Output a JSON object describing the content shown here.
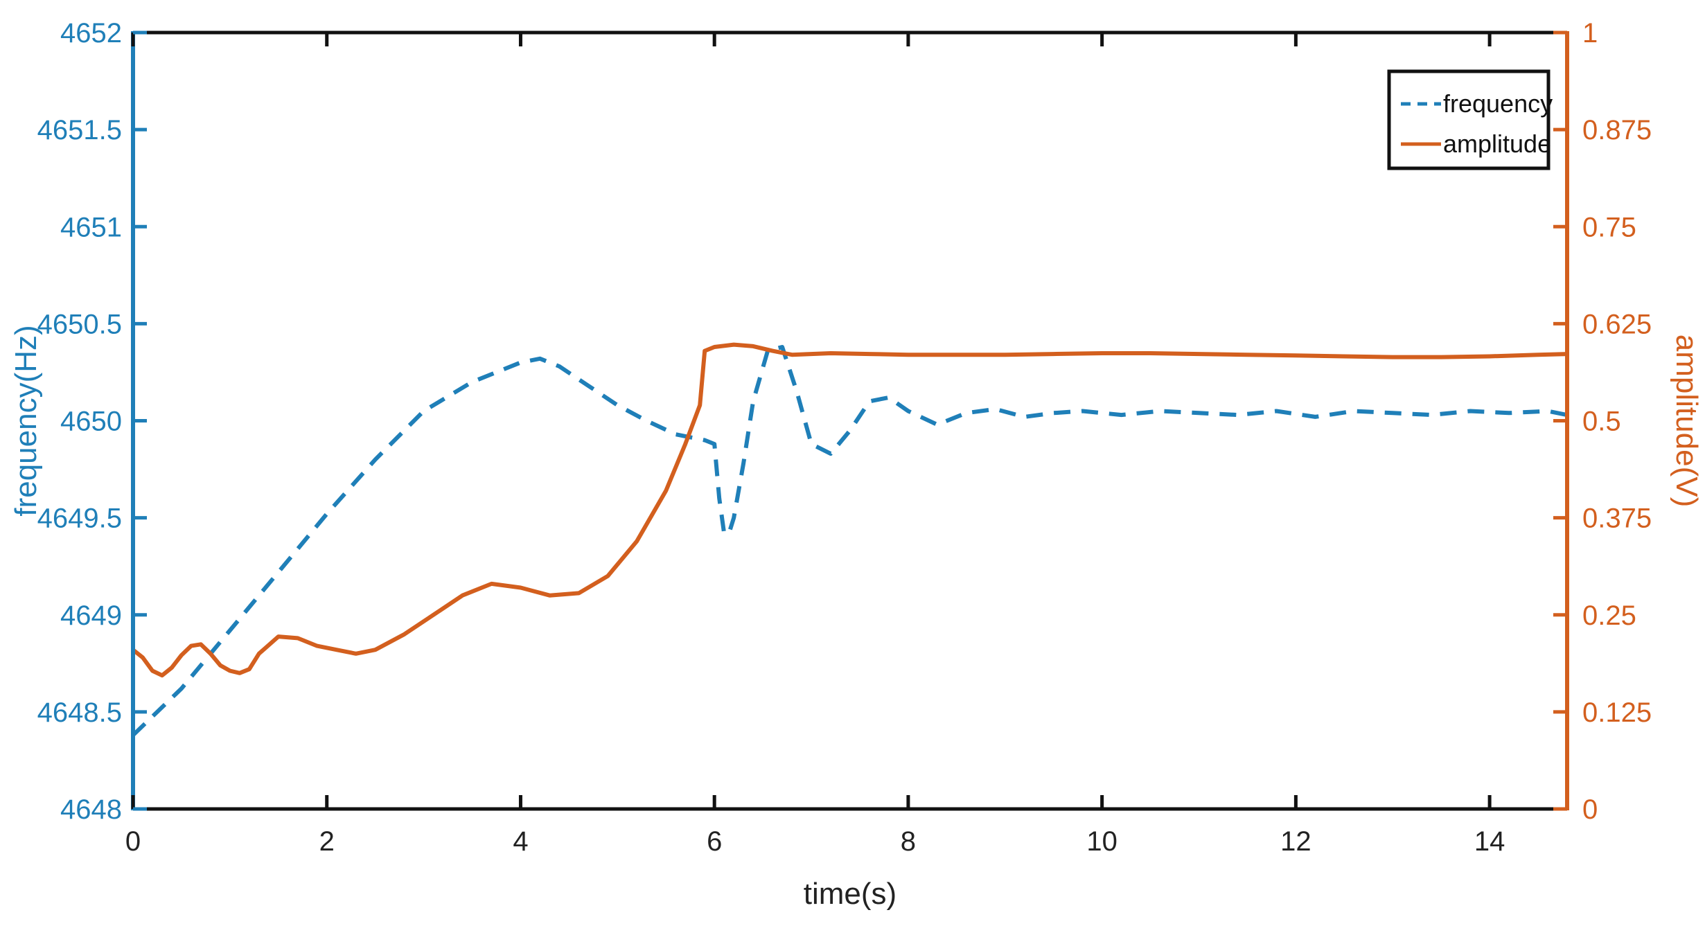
{
  "chart_data": {
    "type": "line",
    "xlabel": "time(s)",
    "ylabel_left": "frequency(Hz)",
    "ylabel_right": "amplitude(V)",
    "xlim": [
      0,
      14.8
    ],
    "ylim_left": [
      4648,
      4652
    ],
    "ylim_right": [
      0,
      1
    ],
    "x_ticks": [
      "0",
      "2",
      "4",
      "6",
      "8",
      "10",
      "12",
      "14"
    ],
    "y_left_ticks": [
      "4648",
      "4648.5",
      "4649",
      "4649.5",
      "4650",
      "4650.5",
      "4651",
      "4651.5",
      "4652"
    ],
    "y_right_ticks": [
      "0",
      "0.125",
      "0.25",
      "0.375",
      "0.5",
      "0.625",
      "0.75",
      "0.875",
      "1"
    ],
    "grid": false,
    "legend_position": "top-right",
    "colors": {
      "frequency": "#1f7fb8",
      "amplitude": "#d35f1e",
      "frame": "#111111"
    },
    "series": [
      {
        "name": "frequency",
        "axis": "left",
        "style": "dashed",
        "x": [
          0,
          0.5,
          1.0,
          1.5,
          2.0,
          2.5,
          3.0,
          3.5,
          4.0,
          4.2,
          4.4,
          4.7,
          5.0,
          5.3,
          5.6,
          5.9,
          6.0,
          6.05,
          6.1,
          6.15,
          6.2,
          6.3,
          6.4,
          6.55,
          6.7,
          6.85,
          7.0,
          7.2,
          7.4,
          7.6,
          7.8,
          8.0,
          8.3,
          8.6,
          8.9,
          9.2,
          9.5,
          9.8,
          10.2,
          10.6,
          11.0,
          11.4,
          11.8,
          12.2,
          12.6,
          13.0,
          13.4,
          13.8,
          14.2,
          14.6,
          14.8
        ],
        "y": [
          4648.38,
          4648.62,
          4648.92,
          4649.22,
          4649.52,
          4649.8,
          4650.05,
          4650.2,
          4650.3,
          4650.32,
          4650.28,
          4650.18,
          4650.08,
          4650.0,
          4649.93,
          4649.9,
          4649.88,
          4649.6,
          4649.42,
          4649.42,
          4649.5,
          4649.78,
          4650.1,
          4650.36,
          4650.38,
          4650.15,
          4649.88,
          4649.83,
          4649.95,
          4650.1,
          4650.12,
          4650.05,
          4649.98,
          4650.04,
          4650.06,
          4650.02,
          4650.04,
          4650.05,
          4650.03,
          4650.05,
          4650.04,
          4650.03,
          4650.05,
          4650.02,
          4650.05,
          4650.04,
          4650.03,
          4650.05,
          4650.04,
          4650.05,
          4650.03
        ]
      },
      {
        "name": "amplitude",
        "axis": "right",
        "style": "solid",
        "x": [
          0,
          0.1,
          0.2,
          0.3,
          0.4,
          0.5,
          0.6,
          0.7,
          0.8,
          0.9,
          1.0,
          1.1,
          1.2,
          1.3,
          1.5,
          1.7,
          1.9,
          2.1,
          2.3,
          2.5,
          2.8,
          3.1,
          3.4,
          3.7,
          4.0,
          4.3,
          4.6,
          4.9,
          5.2,
          5.5,
          5.7,
          5.85,
          5.9,
          6.0,
          6.2,
          6.4,
          6.6,
          6.8,
          7.2,
          7.6,
          8.0,
          8.5,
          9.0,
          9.5,
          10.0,
          10.5,
          11.0,
          11.5,
          12.0,
          12.5,
          13.0,
          13.5,
          14.0,
          14.5,
          14.8
        ],
        "y": [
          0.205,
          0.195,
          0.178,
          0.172,
          0.182,
          0.198,
          0.21,
          0.212,
          0.2,
          0.185,
          0.178,
          0.175,
          0.18,
          0.2,
          0.222,
          0.22,
          0.21,
          0.205,
          0.2,
          0.205,
          0.225,
          0.25,
          0.275,
          0.29,
          0.285,
          0.275,
          0.278,
          0.3,
          0.345,
          0.41,
          0.47,
          0.52,
          0.59,
          0.595,
          0.598,
          0.596,
          0.59,
          0.585,
          0.587,
          0.586,
          0.585,
          0.585,
          0.585,
          0.586,
          0.587,
          0.587,
          0.586,
          0.585,
          0.584,
          0.583,
          0.582,
          0.582,
          0.583,
          0.585,
          0.586
        ]
      }
    ]
  }
}
